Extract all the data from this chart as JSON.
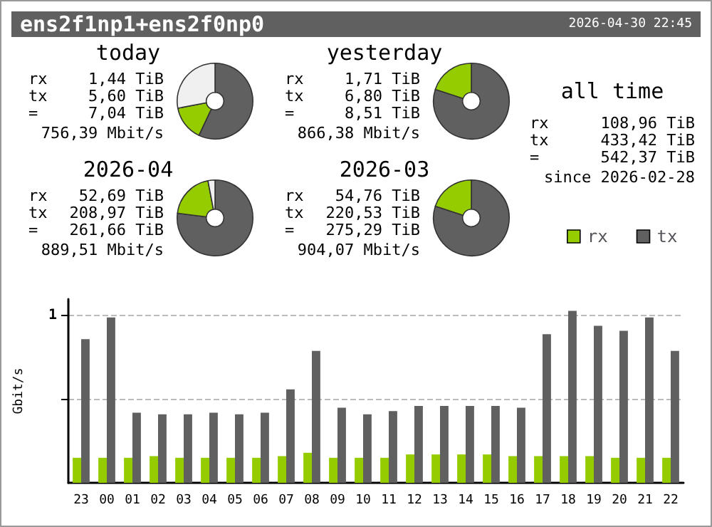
{
  "chart_data": [
    {
      "type": "other",
      "title": "ens2f1np1+ens2f0np0",
      "annotations": [
        "2026-04-30 22:45"
      ]
    },
    {
      "type": "donut",
      "title": "today",
      "categories": [
        null,
        null,
        null
      ],
      "values": [
        57,
        15,
        28
      ],
      "colors": [
        "#606060",
        "#94cc00",
        "#f0f0f0"
      ],
      "annotations": [
        "rx",
        "1,44 TiB",
        "tx",
        "5,60 TiB",
        "=",
        "7,04 TiB",
        "756,39 Mbit/s"
      ]
    },
    {
      "type": "donut",
      "title": "yesterday",
      "categories": [
        null,
        null
      ],
      "values": [
        80,
        20
      ],
      "colors": [
        "#606060",
        "#94cc00"
      ],
      "annotations": [
        "rx",
        "1,71 TiB",
        "tx",
        "6,80 TiB",
        "=",
        "8,51 TiB",
        "866,38 Mbit/s"
      ]
    },
    {
      "type": "other",
      "title": "all time",
      "annotations": [
        "rx",
        "108,96 TiB",
        "tx",
        "433,42 TiB",
        "=",
        "542,37 TiB",
        "since 2026-02-28"
      ]
    },
    {
      "type": "donut",
      "title": "2026-04",
      "categories": [
        null,
        null,
        null
      ],
      "values": [
        77,
        20,
        3
      ],
      "colors": [
        "#606060",
        "#94cc00",
        "#f0f0f0"
      ],
      "annotations": [
        "rx",
        "52,69 TiB",
        "tx",
        "208,97 TiB",
        "=",
        "261,66 TiB",
        "889,51 Mbit/s"
      ]
    },
    {
      "type": "donut",
      "title": "2026-03",
      "categories": [
        null,
        null
      ],
      "values": [
        80,
        20
      ],
      "colors": [
        "#606060",
        "#94cc00"
      ],
      "annotations": [
        "rx",
        "54,76 TiB",
        "tx",
        "220,53 TiB",
        "=",
        "275,29 TiB",
        "904,07 Mbit/s"
      ]
    },
    {
      "type": "bar",
      "ylabel": "Gbit/s",
      "categories": [
        "23",
        "00",
        "01",
        "02",
        "03",
        "04",
        "05",
        "06",
        "07",
        "08",
        "09",
        "10",
        "11",
        "12",
        "13",
        "14",
        "15",
        "16",
        "17",
        "18",
        "19",
        "20",
        "21",
        "22"
      ],
      "series": [
        {
          "name": "rx",
          "color": "#94cc00",
          "values": [
            0.15,
            0.15,
            0.15,
            0.16,
            0.15,
            0.15,
            0.15,
            0.15,
            0.16,
            0.18,
            0.15,
            0.15,
            0.15,
            0.17,
            0.17,
            0.17,
            0.17,
            0.16,
            0.16,
            0.16,
            0.16,
            0.15,
            0.15,
            0.15
          ]
        },
        {
          "name": "tx",
          "color": "#606060",
          "values": [
            0.86,
            0.99,
            0.42,
            0.41,
            0.41,
            0.42,
            0.41,
            0.42,
            0.56,
            0.79,
            0.45,
            0.41,
            0.43,
            0.46,
            0.46,
            0.46,
            0.46,
            0.45,
            0.89,
            1.03,
            0.94,
            0.91,
            0.99,
            0.79
          ]
        }
      ],
      "ylim": [
        0,
        1.1
      ],
      "yticks": [
        {
          "value": 0.5,
          "label": null
        },
        1
      ],
      "grid": "y",
      "legend": "top right"
    }
  ]
}
